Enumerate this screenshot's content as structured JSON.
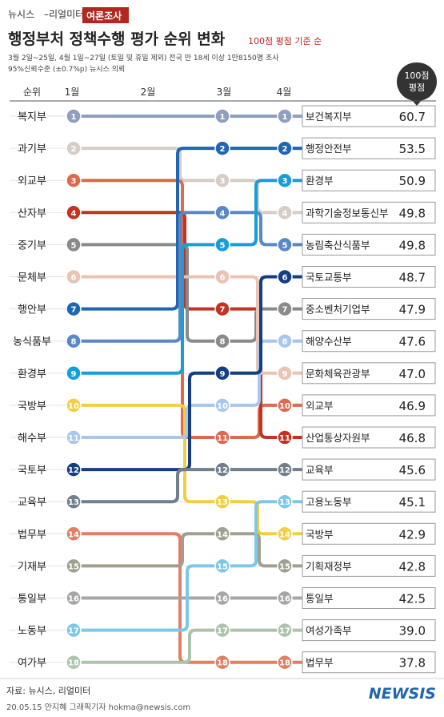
{
  "header": {
    "brand": "뉴시스",
    "partner": "–리얼미터",
    "tag": "여론조사",
    "title": "행정부처 정책수행 평가 순위 변화",
    "title_note": "100점 평점 기준 순",
    "subtitle_line1": "3월 2일~25일, 4월 1일~27일 (토일 및 휴일 제외) 전국 만 18세 이상 1만8150명 조사",
    "subtitle_line2": "95%신뢰수준 (±0.7%p)  뉴시스 의뢰"
  },
  "score_header_line1": "100점",
  "score_header_line2": "평점",
  "footer": {
    "source": "자료: 뉴시스, 리얼미터",
    "credit": "20.05.15 안지혜 그래픽기자 hokma@newsis.com",
    "watermark": "NEWSIS"
  },
  "colors": {
    "brand_red": "#b5261e",
    "grid_line": "#e2e2e2",
    "box_border": "#9a9a9a"
  },
  "chart_data": {
    "type": "bump",
    "x_labels": [
      "순위",
      "1월",
      "2월",
      "3월",
      "4월"
    ],
    "periods": [
      "1월",
      "3월",
      "4월"
    ],
    "series": [
      {
        "name": "복지부",
        "color": "#8e9fbf",
        "ranks": [
          1,
          1,
          1
        ]
      },
      {
        "name": "과기부",
        "color": "#d6cdc6",
        "ranks": [
          2,
          3,
          4
        ]
      },
      {
        "name": "외교부",
        "color": "#dd6a4e",
        "ranks": [
          3,
          11,
          10
        ]
      },
      {
        "name": "산자부",
        "color": "#c03422",
        "ranks": [
          4,
          7,
          11
        ]
      },
      {
        "name": "중기부",
        "color": "#8a8a8a",
        "ranks": [
          5,
          8,
          7
        ]
      },
      {
        "name": "문체부",
        "color": "#e9c3b4",
        "ranks": [
          6,
          6,
          9
        ]
      },
      {
        "name": "행안부",
        "color": "#1f65b0",
        "ranks": [
          7,
          2,
          2
        ]
      },
      {
        "name": "농식품부",
        "color": "#5a88c6",
        "ranks": [
          8,
          4,
          5
        ]
      },
      {
        "name": "환경부",
        "color": "#159fd9",
        "ranks": [
          9,
          5,
          3
        ]
      },
      {
        "name": "국방부",
        "color": "#f3cd43",
        "ranks": [
          10,
          13,
          14
        ]
      },
      {
        "name": "해수부",
        "color": "#aac6ec",
        "ranks": [
          11,
          10,
          8
        ]
      },
      {
        "name": "국토부",
        "color": "#153d82",
        "ranks": [
          12,
          9,
          6
        ]
      },
      {
        "name": "교육부",
        "color": "#6f7f8c",
        "ranks": [
          13,
          12,
          12
        ]
      },
      {
        "name": "법무부",
        "color": "#e07f62",
        "ranks": [
          14,
          18,
          18
        ]
      },
      {
        "name": "기재부",
        "color": "#a0a090",
        "ranks": [
          15,
          14,
          15
        ]
      },
      {
        "name": "통일부",
        "color": "#a6a6a6",
        "ranks": [
          16,
          16,
          16
        ]
      },
      {
        "name": "노동부",
        "color": "#7dc7e9",
        "ranks": [
          17,
          15,
          13
        ]
      },
      {
        "name": "여가부",
        "color": "#adc3ac",
        "ranks": [
          18,
          17,
          17
        ]
      }
    ],
    "final_ranking": [
      {
        "rank": 1,
        "name": "보건복지부",
        "score": "60.7"
      },
      {
        "rank": 2,
        "name": "행정안전부",
        "score": "53.5"
      },
      {
        "rank": 3,
        "name": "환경부",
        "score": "50.9"
      },
      {
        "rank": 4,
        "name": "과학기술정보통신부",
        "score": "49.8"
      },
      {
        "rank": 5,
        "name": "농림축산식품부",
        "score": "49.8"
      },
      {
        "rank": 6,
        "name": "국토교통부",
        "score": "48.7"
      },
      {
        "rank": 7,
        "name": "중소벤처기업부",
        "score": "47.9"
      },
      {
        "rank": 8,
        "name": "해양수산부",
        "score": "47.6"
      },
      {
        "rank": 9,
        "name": "문화체육관광부",
        "score": "47.0"
      },
      {
        "rank": 10,
        "name": "외교부",
        "score": "46.9"
      },
      {
        "rank": 11,
        "name": "산업통상자원부",
        "score": "46.8"
      },
      {
        "rank": 12,
        "name": "교육부",
        "score": "45.6"
      },
      {
        "rank": 13,
        "name": "고용노동부",
        "score": "45.1"
      },
      {
        "rank": 14,
        "name": "국방부",
        "score": "42.9"
      },
      {
        "rank": 15,
        "name": "기획재정부",
        "score": "42.8"
      },
      {
        "rank": 16,
        "name": "통일부",
        "score": "42.5"
      },
      {
        "rank": 17,
        "name": "여성가족부",
        "score": "39.0"
      },
      {
        "rank": 18,
        "name": "법무부",
        "score": "37.8"
      }
    ]
  }
}
